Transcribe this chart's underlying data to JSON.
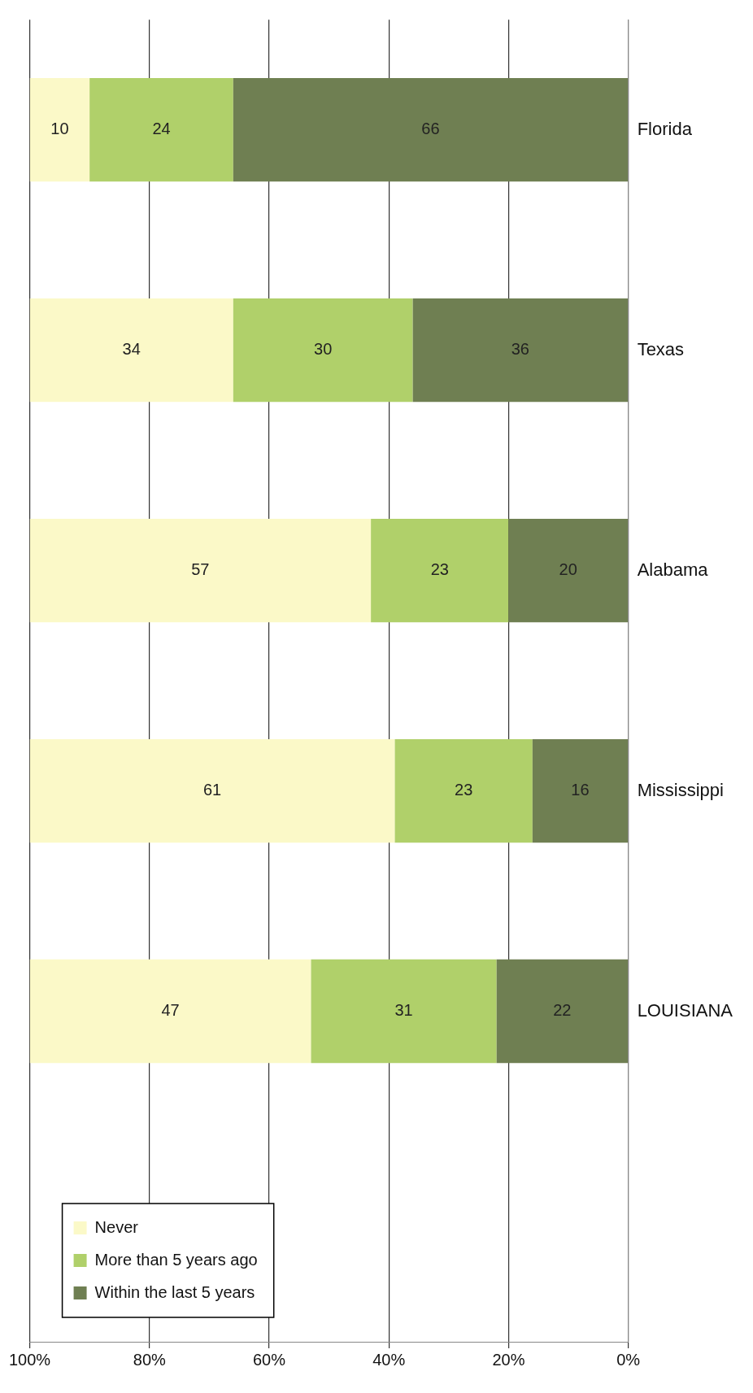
{
  "chart_data": {
    "type": "bar",
    "orientation": "horizontal",
    "stacked": true,
    "categories": [
      "Florida",
      "Texas",
      "Alabama",
      "Mississippi",
      "LOUISIANA",
      null
    ],
    "series": [
      {
        "name": "Within the last 5 years",
        "color": "#6f7f52",
        "values": [
          66,
          36,
          20,
          16,
          22,
          null
        ]
      },
      {
        "name": "More than 5 years ago",
        "color": "#b0d06a",
        "values": [
          24,
          30,
          23,
          23,
          31,
          null
        ]
      },
      {
        "name": "Never",
        "color": "#fbf9c8",
        "values": [
          10,
          34,
          57,
          61,
          47,
          null
        ]
      }
    ],
    "xlim": [
      100,
      0
    ],
    "xticks": [
      {
        "value": 100,
        "label": "100%"
      },
      {
        "value": 80,
        "label": "80%"
      },
      {
        "value": 60,
        "label": "60%"
      },
      {
        "value": 40,
        "label": "40%"
      },
      {
        "value": 20,
        "label": "20%"
      },
      {
        "value": 0,
        "label": "0%"
      }
    ],
    "grid": "x",
    "legend": "bottom left",
    "data_labels": true
  }
}
